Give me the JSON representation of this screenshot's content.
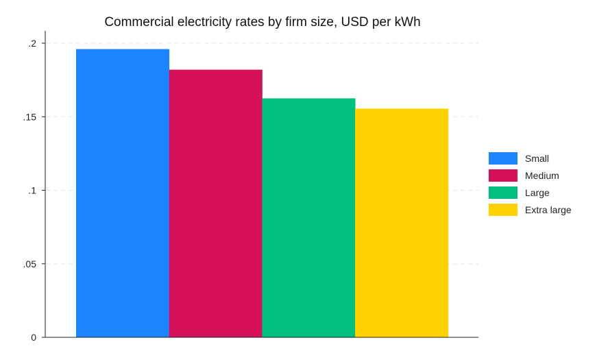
{
  "chart_data": {
    "type": "bar",
    "title": "Commercial electricity rates by firm size, USD per kWh",
    "xlabel": "",
    "ylabel": "",
    "ylim": [
      0,
      0.2
    ],
    "yticks": [
      0,
      0.05,
      0.1,
      0.15,
      0.2
    ],
    "ytick_labels": [
      "0",
      ".05",
      ".1",
      ".15",
      ".2"
    ],
    "grid": true,
    "legend_position": "right",
    "series": [
      {
        "name": "Small",
        "value": 0.196,
        "color": "#1a85ff"
      },
      {
        "name": "Medium",
        "value": 0.182,
        "color": "#d41159"
      },
      {
        "name": "Large",
        "value": 0.1625,
        "color": "#00bf7f"
      },
      {
        "name": "Extra large",
        "value": 0.1555,
        "color": "#ffd100"
      }
    ]
  }
}
